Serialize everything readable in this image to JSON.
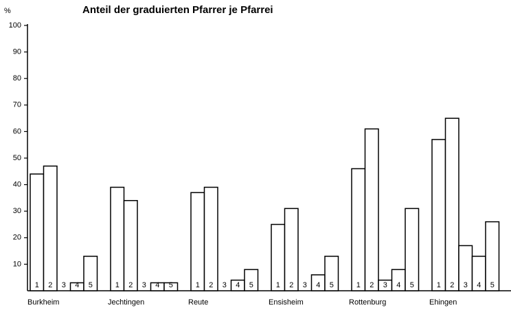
{
  "chart_data": {
    "type": "bar",
    "title": "Anteil der graduierten Pfarrer je Pfarrei",
    "y_label": "%",
    "categories": [
      "Burkheim",
      "Jechtingen",
      "Reute",
      "Ensisheim",
      "Rottenburg",
      "Ehingen"
    ],
    "series": [
      {
        "name": "1",
        "color": "#ffffff",
        "values": [
          44,
          39,
          37,
          25,
          46,
          57
        ]
      },
      {
        "name": "2",
        "color": "#ffffff",
        "values": [
          47,
          34,
          39,
          31,
          61,
          65
        ]
      },
      {
        "name": "3",
        "color": "#ffffff",
        "values": [
          0,
          0,
          0,
          0,
          4,
          17
        ]
      },
      {
        "name": "4",
        "color": "#ffffff",
        "values": [
          3,
          3,
          4,
          6,
          8,
          13
        ]
      },
      {
        "name": "5",
        "color": "#ffffff",
        "values": [
          13,
          3,
          8,
          13,
          31,
          26
        ]
      }
    ],
    "ylim": [
      0,
      100
    ],
    "yticks": [
      10,
      20,
      30,
      40,
      50,
      60,
      70,
      80,
      90,
      100
    ]
  }
}
